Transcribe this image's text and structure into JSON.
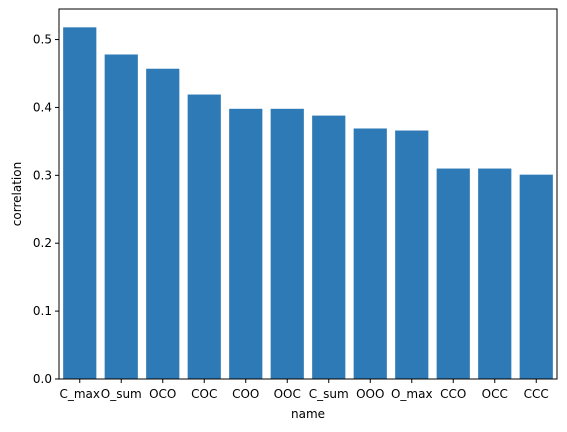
{
  "chart_data": {
    "type": "bar",
    "categories": [
      "C_max",
      "O_sum",
      "OCO",
      "COC",
      "COO",
      "OOC",
      "C_sum",
      "OOO",
      "O_max",
      "CCO",
      "OCC",
      "CCC"
    ],
    "values": [
      0.518,
      0.478,
      0.457,
      0.419,
      0.398,
      0.398,
      0.388,
      0.369,
      0.366,
      0.31,
      0.31,
      0.301
    ],
    "xlabel": "name",
    "ylabel": "correlation",
    "ylim": [
      0,
      0.545
    ],
    "yticks": [
      0.0,
      0.1,
      0.2,
      0.3,
      0.4,
      0.5
    ],
    "ytick_labels": [
      "0.0",
      "0.1",
      "0.2",
      "0.3",
      "0.4",
      "0.5"
    ],
    "grid": false,
    "colors": {
      "bar": "#2e7ab6",
      "axis": "#000000"
    }
  }
}
